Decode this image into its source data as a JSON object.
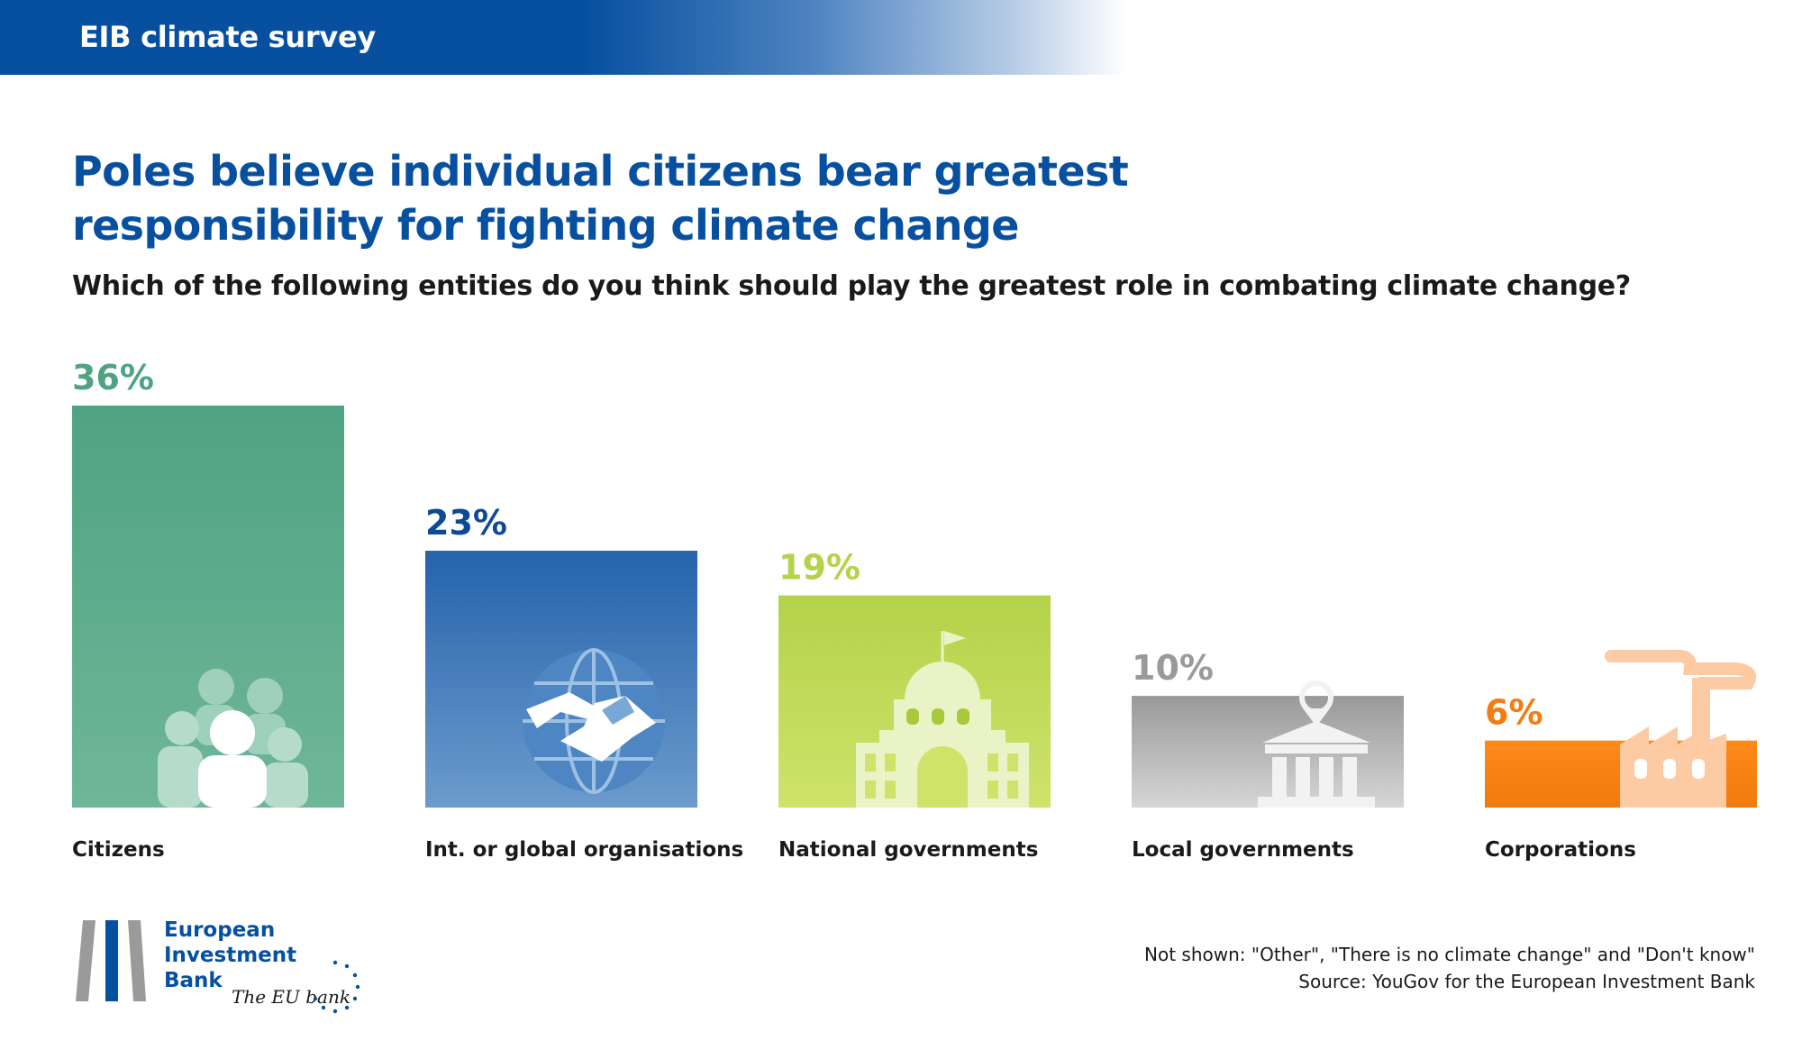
{
  "header": {
    "label": "EIB climate survey"
  },
  "title": "Poles believe individual citizens bear greatest responsibility for fighting climate change",
  "subtitle": "Which of the following entities do you think should play the greatest role in combating climate change?",
  "chart_data": {
    "type": "bar",
    "categories": [
      "Citizens",
      "Int. or global organisations",
      "National governments",
      "Local governments",
      "Corporations"
    ],
    "values": [
      36,
      23,
      19,
      10,
      6
    ],
    "value_labels": [
      "36%",
      "23%",
      "19%",
      "10%",
      "6%"
    ],
    "unit": "%",
    "ylim": [
      0,
      36
    ],
    "grid": false,
    "legend": "none",
    "icons": [
      "people-group-icon",
      "globe-handshake-icon",
      "capitol-building-icon",
      "town-hall-icon",
      "factory-icon"
    ],
    "colors": [
      {
        "top": "#4fa383",
        "bottom": "#6fb698",
        "label": "#4fa383"
      },
      {
        "top": "#2563ab",
        "bottom": "#6c9bcc",
        "label": "#0d4a94"
      },
      {
        "top": "#b4d24a",
        "bottom": "#cfe36b",
        "label": "#b4d24a"
      },
      {
        "top": "#999999",
        "bottom": "#d6d6d6",
        "label": "#9a9a9a"
      },
      {
        "top": "#ff8a18",
        "bottom": "#f07a0e",
        "label": "#f47c11"
      }
    ]
  },
  "footnote": {
    "not_shown": "Not shown: \"Other\", \"There is no climate change\" and \"Don't know\"",
    "source": "Source: YouGov for the European Investment Bank"
  },
  "logo": {
    "line1": "European",
    "line2": "Investment",
    "line3": "Bank",
    "slogan": "The EU bank"
  }
}
